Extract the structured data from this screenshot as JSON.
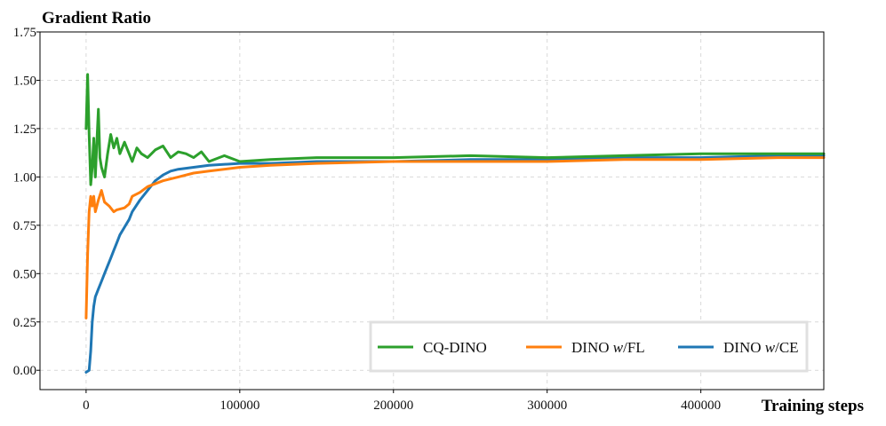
{
  "chart_data": {
    "type": "line",
    "ylabel": "Gradient Ratio",
    "xlabel": "Training steps",
    "xlim": [
      -30000,
      480000
    ],
    "ylim": [
      -0.1,
      1.75
    ],
    "xticks": [
      0,
      100000,
      200000,
      300000,
      400000
    ],
    "xtick_labels": [
      "0",
      "100000",
      "200000",
      "300000",
      "400000"
    ],
    "yticks": [
      0.0,
      0.25,
      0.5,
      0.75,
      1.0,
      1.25,
      1.5,
      1.75
    ],
    "ytick_labels": [
      "0.00",
      "0.25",
      "0.50",
      "0.75",
      "1.00",
      "1.25",
      "1.50",
      "1.75"
    ],
    "grid": true,
    "legend_position": "lower-right",
    "series": [
      {
        "name": "CQ-DINO",
        "name_parts": [
          "CQ-DINO",
          "",
          ""
        ],
        "color": "#2ca02c",
        "x": [
          0,
          1000,
          2000,
          3000,
          4000,
          5000,
          6000,
          7000,
          8000,
          9000,
          10000,
          12000,
          14000,
          16000,
          18000,
          20000,
          22000,
          25000,
          28000,
          30000,
          33000,
          36000,
          40000,
          45000,
          50000,
          55000,
          60000,
          65000,
          70000,
          75000,
          80000,
          90000,
          100000,
          120000,
          150000,
          200000,
          250000,
          300000,
          350000,
          400000,
          450000,
          480000
        ],
        "y": [
          1.25,
          1.53,
          1.22,
          0.96,
          1.05,
          1.2,
          1.0,
          1.18,
          1.35,
          1.1,
          1.05,
          1.0,
          1.12,
          1.22,
          1.15,
          1.2,
          1.12,
          1.18,
          1.12,
          1.08,
          1.15,
          1.12,
          1.1,
          1.14,
          1.16,
          1.1,
          1.13,
          1.12,
          1.1,
          1.13,
          1.08,
          1.11,
          1.08,
          1.09,
          1.1,
          1.1,
          1.11,
          1.1,
          1.11,
          1.12,
          1.12,
          1.12
        ]
      },
      {
        "name": "DINO w/FL",
        "name_parts": [
          "DINO ",
          "w",
          "/FL"
        ],
        "color": "#ff7f0e",
        "x": [
          0,
          1000,
          2000,
          3000,
          4000,
          5000,
          6000,
          8000,
          10000,
          12000,
          15000,
          18000,
          20000,
          25000,
          28000,
          30000,
          35000,
          40000,
          50000,
          60000,
          70000,
          80000,
          100000,
          120000,
          150000,
          200000,
          250000,
          300000,
          350000,
          400000,
          450000,
          480000
        ],
        "y": [
          0.27,
          0.6,
          0.82,
          0.9,
          0.85,
          0.9,
          0.82,
          0.88,
          0.93,
          0.87,
          0.85,
          0.82,
          0.83,
          0.84,
          0.86,
          0.9,
          0.92,
          0.95,
          0.98,
          1.0,
          1.02,
          1.03,
          1.05,
          1.06,
          1.07,
          1.08,
          1.08,
          1.08,
          1.09,
          1.09,
          1.1,
          1.1
        ]
      },
      {
        "name": "DINO w/CE",
        "name_parts": [
          "DINO ",
          "w",
          "/CE"
        ],
        "color": "#1f77b4",
        "x": [
          0,
          2000,
          3000,
          4000,
          5000,
          6000,
          8000,
          10000,
          12000,
          14000,
          16000,
          18000,
          20000,
          22000,
          25000,
          28000,
          30000,
          35000,
          40000,
          45000,
          50000,
          55000,
          60000,
          70000,
          80000,
          100000,
          120000,
          150000,
          200000,
          250000,
          300000,
          350000,
          400000,
          450000,
          480000
        ],
        "y": [
          -0.01,
          0.0,
          0.1,
          0.25,
          0.33,
          0.38,
          0.42,
          0.46,
          0.5,
          0.54,
          0.58,
          0.62,
          0.66,
          0.7,
          0.74,
          0.78,
          0.82,
          0.88,
          0.93,
          0.98,
          1.01,
          1.03,
          1.04,
          1.05,
          1.06,
          1.07,
          1.07,
          1.08,
          1.08,
          1.09,
          1.09,
          1.1,
          1.1,
          1.11,
          1.11
        ]
      }
    ]
  }
}
